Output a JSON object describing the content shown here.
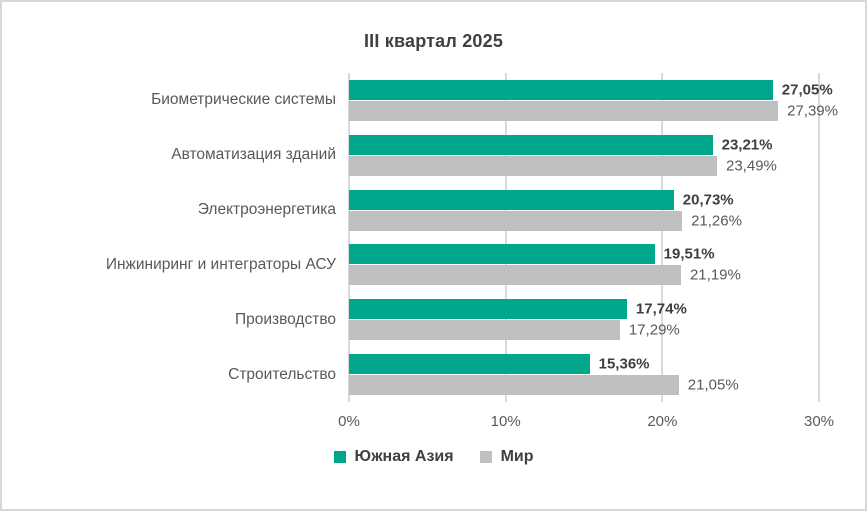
{
  "title": "III квартал 2025",
  "colors": {
    "south_asia": "#00A78C",
    "world": "#BFBFBF",
    "grid": "#D9D9D9",
    "text_primary": "#404040",
    "text_secondary": "#595959",
    "border": "#D7D7D7"
  },
  "legend": {
    "items": [
      {
        "label": "Южная Азия",
        "color_key": "south_asia"
      },
      {
        "label": "Мир",
        "color_key": "world"
      }
    ]
  },
  "chart_data": {
    "type": "bar",
    "orientation": "horizontal",
    "title": "III квартал 2025",
    "categories": [
      "Биометрические системы",
      "Автоматизация зданий",
      "Электроэнергетика",
      "Инжиниринг и интеграторы АСУ",
      "Производство",
      "Строительство"
    ],
    "series": [
      {
        "name": "Южная Азия",
        "color_key": "south_asia",
        "emphasis": "bold",
        "values": [
          27.05,
          23.21,
          20.73,
          19.51,
          17.74,
          15.36
        ],
        "value_labels": [
          "27,05%",
          "23,21%",
          "20,73%",
          "19,51%",
          "17,74%",
          "15,36%"
        ]
      },
      {
        "name": "Мир",
        "color_key": "world",
        "emphasis": "normal",
        "values": [
          27.39,
          23.49,
          21.26,
          21.19,
          17.29,
          21.05
        ],
        "value_labels": [
          "27,39%",
          "23,49%",
          "21,26%",
          "21,19%",
          "17,29%",
          "21,05%"
        ]
      }
    ],
    "x_axis": {
      "min": 0,
      "max": 30,
      "ticks": [
        "0%",
        "10%",
        "20%",
        "30%"
      ]
    },
    "grid": true,
    "legend_position": "bottom"
  }
}
